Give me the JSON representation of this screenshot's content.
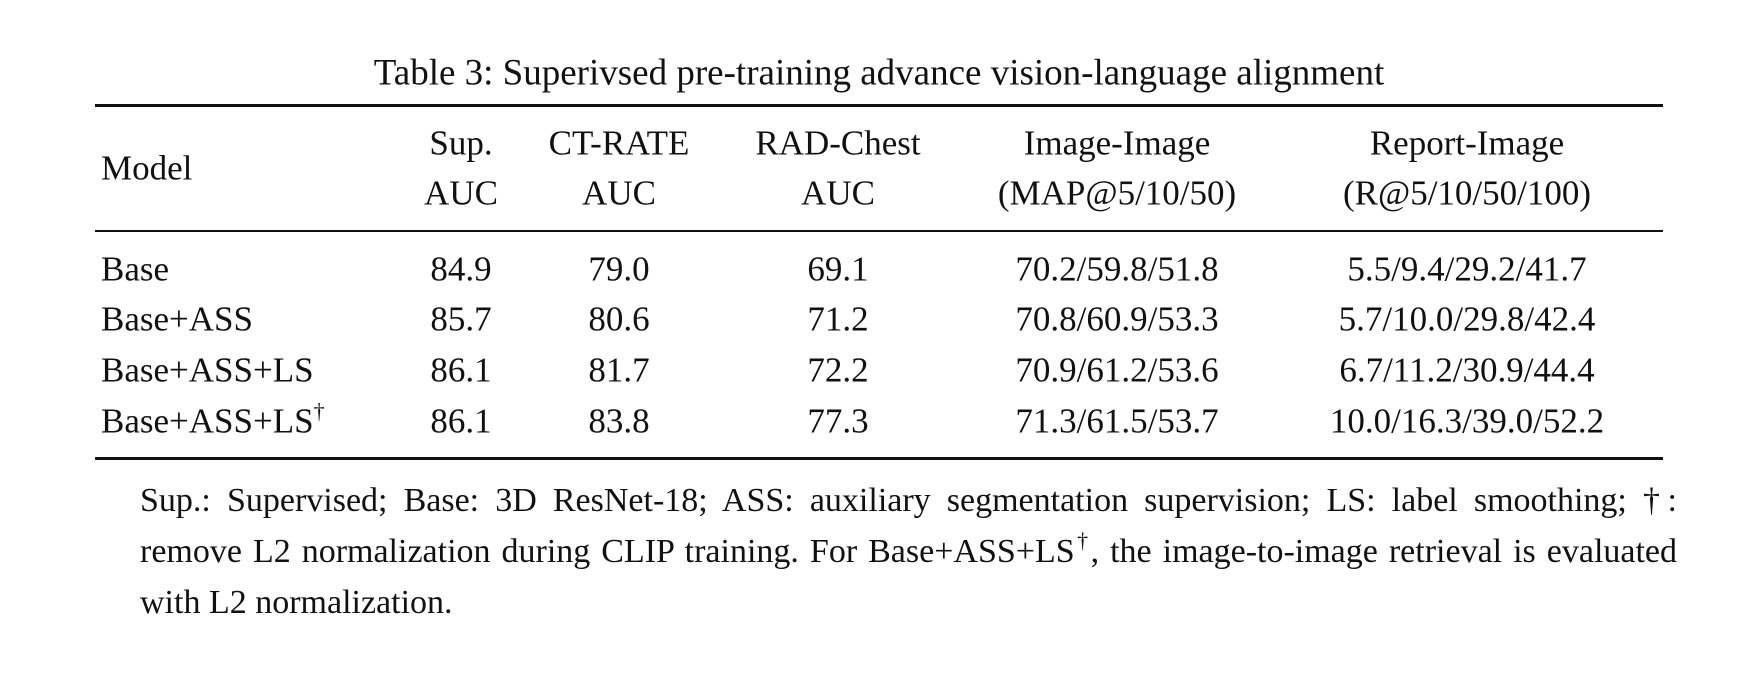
{
  "caption": "Table 3: Superivsed pre-training advance vision-language alignment",
  "table": {
    "header": [
      [
        "Model"
      ],
      [
        "Sup.",
        "AUC"
      ],
      [
        "CT-RATE",
        "AUC"
      ],
      [
        "RAD-Chest",
        "AUC"
      ],
      [
        "Image-Image",
        "(MAP@5/10/50)"
      ],
      [
        "Report-Image",
        "(R@5/10/50/100)"
      ]
    ],
    "rows": [
      [
        {
          "text": "Base"
        },
        "84.9",
        "79.0",
        "69.1",
        "70.2/59.8/51.8",
        "5.5/9.4/29.2/41.7"
      ],
      [
        {
          "text": "Base+ASS"
        },
        "85.7",
        "80.6",
        "71.2",
        "70.8/60.9/53.3",
        "5.7/10.0/29.8/42.4"
      ],
      [
        {
          "text": "Base+ASS+LS"
        },
        "86.1",
        "81.7",
        "72.2",
        "70.9/61.2/53.6",
        "6.7/11.2/30.9/44.4"
      ],
      [
        {
          "text": "Base+ASS+LS",
          "sup": "†"
        },
        "86.1",
        "83.8",
        "77.3",
        "71.3/61.5/53.7",
        "10.0/16.3/39.0/52.2"
      ]
    ]
  },
  "footnote": {
    "text": "Sup.: Supervised; Base: 3D ResNet-18; ASS: auxiliary segmentation supervision; LS: label smoothing; †: remove L2 normalization during CLIP training. For Base+ASS+LS",
    "sup": "†",
    "rest": ", the image-to-image retrieval is evaluated with L2 normalization."
  }
}
